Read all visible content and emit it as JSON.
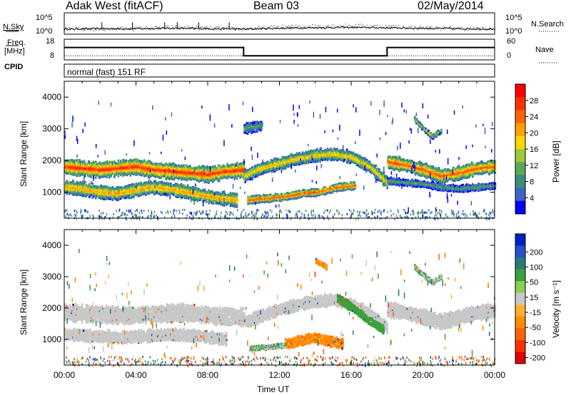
{
  "header": {
    "station": "Adak West (fitACF)",
    "beam": "Beam 03",
    "date": "02/May/2014"
  },
  "panels": {
    "nsky": {
      "left_label": "N.Sky",
      "left_ticks": [
        "10^5",
        "10^0"
      ],
      "right_ticks": [
        "10^5",
        "10^0"
      ],
      "right_label": "N.Search"
    },
    "freq": {
      "left_label_1": "Freq.",
      "left_label_2": "[MHz]",
      "left_ticks": [
        "18",
        "8"
      ],
      "right_ticks": [
        "60",
        "0"
      ],
      "right_label": "Nave"
    },
    "cpid": {
      "label": "CPID",
      "value": "normal (fast) 151 RF"
    }
  },
  "axes": {
    "xlabel": "Time UT",
    "x_ticks": [
      "00:00",
      "04:00",
      "08:00",
      "12:00",
      "16:00",
      "20:00",
      "00:00"
    ],
    "ylabel": "Slant Range [km]",
    "y_ticks": [
      "1000",
      "2000",
      "3000",
      "4000"
    ]
  },
  "colorbars": {
    "power": {
      "label": "Power [dB]",
      "ticks": [
        "4",
        "8",
        "12",
        "16",
        "20",
        "24",
        "28"
      ],
      "colors": [
        "#0000ff",
        "#3c64c8",
        "#3c8c78",
        "#5aaa5a",
        "#a0c83c",
        "#ffd700",
        "#ffa000",
        "#ff6400",
        "#ff3000",
        "#ff0000"
      ]
    },
    "velocity": {
      "label": "Velocity [m s⁻¹]",
      "ticks": [
        "200",
        "100",
        "50",
        "15",
        "-15",
        "-50",
        "-100",
        "-200"
      ],
      "colors": [
        "#0020c0",
        "#2850c8",
        "#2a7a78",
        "#3ca03c",
        "#88d050",
        "#c8c8c8",
        "#ffb030",
        "#ff8c00",
        "#ff6400",
        "#ff3000",
        "#e00000"
      ]
    }
  },
  "chart_data": [
    {
      "type": "line",
      "title": "N.Sky / N.Search",
      "x": [
        0,
        2,
        4,
        6,
        8,
        10,
        12,
        14,
        16,
        18,
        20,
        22,
        24
      ],
      "series": [
        {
          "name": "N.Sky",
          "values": [
            1.2,
            1.3,
            1.3,
            1.4,
            1.3,
            1.2,
            1.4,
            1.5,
            1.6,
            1.5,
            1.4,
            1.3,
            1.2
          ]
        },
        {
          "name": "N.Search",
          "values": [
            1.0,
            1.1,
            1.2,
            1.5,
            1.3,
            1.1,
            1.6,
            1.8,
            1.9,
            1.7,
            1.4,
            1.2,
            1.1
          ]
        }
      ],
      "xlim": [
        0,
        24
      ],
      "ylim": [
        0,
        5
      ]
    },
    {
      "type": "line",
      "title": "Freq. / Nave",
      "series": [
        {
          "name": "Freq. [MHz]",
          "x": [
            0,
            10,
            10,
            18,
            18,
            24
          ],
          "values": [
            14,
            14,
            10,
            10,
            14,
            14
          ]
        },
        {
          "name": "Nave",
          "x": [
            0,
            24
          ],
          "values": [
            12,
            12
          ]
        }
      ],
      "xlim": [
        0,
        24
      ],
      "ylim_left": [
        8,
        18
      ],
      "ylim_right": [
        0,
        60
      ]
    },
    {
      "type": "heatmap",
      "title": "Power [dB]",
      "x_unit": "hours UT",
      "y_unit": "km",
      "xlim": [
        0,
        24
      ],
      "ylim": [
        180,
        4500
      ],
      "bands": [
        {
          "start_h": 0.0,
          "end_h": 10.0,
          "center_km": [
            1800,
            1750,
            1700,
            1750,
            1800,
            1700,
            1650,
            1600,
            1550,
            1650,
            1700
          ],
          "width_km": 450,
          "peak_db": 26
        },
        {
          "start_h": 0.0,
          "end_h": 9.6,
          "center_km": [
            1150,
            1100,
            1000,
            950,
            1050,
            1150,
            1100,
            1000,
            900,
            800,
            750
          ],
          "width_km": 380,
          "peak_db": 20
        },
        {
          "start_h": 10.0,
          "end_h": 18.0,
          "center_km": [
            1500,
            1750,
            1900,
            2050,
            2150,
            2200,
            2100,
            1800,
            1300
          ],
          "width_km": 350,
          "peak_db": 18
        },
        {
          "start_h": 10.2,
          "end_h": 16.2,
          "center_km": [
            750,
            800,
            850,
            950,
            1000,
            1150,
            1200
          ],
          "width_km": 220,
          "peak_db": 24
        },
        {
          "start_h": 10.0,
          "end_h": 11.0,
          "center_km": [
            3000,
            3050,
            3100
          ],
          "width_km": 300,
          "peak_db": 10
        },
        {
          "start_h": 18.0,
          "end_h": 24.0,
          "center_km": [
            1950,
            1850,
            1700,
            1500,
            1600,
            1750,
            1800
          ],
          "width_km": 380,
          "peak_db": 24
        },
        {
          "start_h": 18.0,
          "end_h": 24.0,
          "center_km": [
            1350,
            1300,
            1250,
            1150,
            1100,
            1150,
            1200
          ],
          "width_km": 200,
          "peak_db": 10
        },
        {
          "start_h": 19.5,
          "end_h": 21.0,
          "center_km": [
            3300,
            3000,
            2750,
            2950
          ],
          "width_km": 150,
          "peak_db": 14
        }
      ]
    },
    {
      "type": "heatmap",
      "title": "Velocity [m s⁻¹]",
      "x_unit": "hours UT",
      "y_unit": "km",
      "xlim": [
        0,
        24
      ],
      "ylim": [
        180,
        4500
      ],
      "bands": [
        {
          "start_h": 0.0,
          "end_h": 10.0,
          "center_km": [
            1850,
            1800,
            1750,
            1800,
            1850,
            1750,
            1700
          ],
          "width_km": 500,
          "velocity": 0
        },
        {
          "start_h": 0.0,
          "end_h": 9.0,
          "center_km": [
            1150,
            1100,
            1050,
            1100,
            1150,
            1100,
            1000
          ],
          "width_km": 350,
          "velocity": 0
        },
        {
          "start_h": 10.0,
          "end_h": 18.0,
          "center_km": [
            1550,
            1750,
            1950,
            2100,
            2200,
            2250,
            2100,
            1800,
            1350
          ],
          "width_km": 350,
          "velocity": 0
        },
        {
          "start_h": 15.2,
          "end_h": 17.8,
          "center_km": [
            2300,
            2000,
            1600,
            1300
          ],
          "width_km": 250,
          "velocity": 30
        },
        {
          "start_h": 12.3,
          "end_h": 15.5,
          "center_km": [
            850,
            950,
            1050,
            950,
            850
          ],
          "width_km": 300,
          "velocity": -40
        },
        {
          "start_h": 10.3,
          "end_h": 12.3,
          "center_km": [
            700,
            750,
            800
          ],
          "width_km": 150,
          "velocity": 15
        },
        {
          "start_h": 18.0,
          "end_h": 24.0,
          "center_km": [
            1950,
            1850,
            1700,
            1550,
            1700,
            1850,
            1900
          ],
          "width_km": 450,
          "velocity": 0
        },
        {
          "start_h": 19.5,
          "end_h": 21.0,
          "center_km": [
            3300,
            3050,
            2800,
            3000
          ],
          "width_km": 150,
          "velocity": 15
        },
        {
          "start_h": 14.0,
          "end_h": 14.6,
          "center_km": [
            3500,
            3300
          ],
          "width_km": 150,
          "velocity": -40
        }
      ]
    }
  ]
}
